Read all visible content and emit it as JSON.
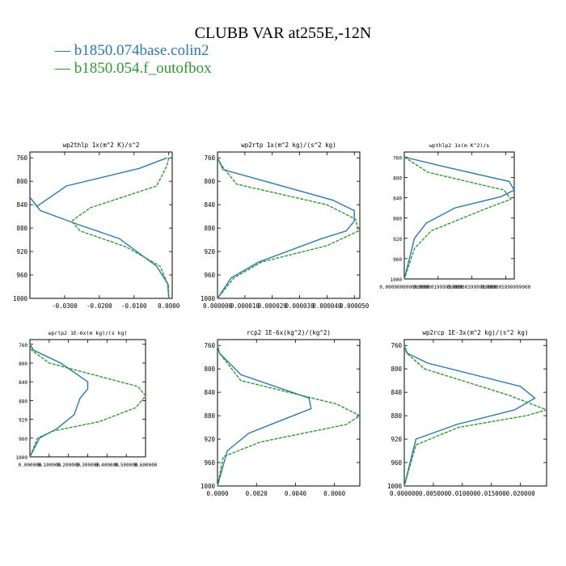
{
  "title": "CLUBB VAR at255E,-12N",
  "legend": [
    {
      "label": "b1850.074base.colin2",
      "color": "#2a78b4",
      "dash": false
    },
    {
      "label": "b1850.054.f_outofbox",
      "color": "#2f9a2f",
      "dash": true
    }
  ],
  "chart_data": [
    {
      "type": "line",
      "title": "wp2thlp   1x(m^2 K)/s^2",
      "xlim": [
        -0.04,
        0.001
      ],
      "ylim": [
        1000,
        750
      ],
      "xticks": [
        -0.03,
        -0.02,
        -0.01,
        0.0
      ],
      "xtick_labels": [
        "-0.0300",
        "-0.0200",
        "-0.0100",
        "0.0000"
      ],
      "yticks": [
        760,
        800,
        840,
        880,
        920,
        960,
        1000
      ],
      "ytick_labels": [
        "760",
        "800",
        "840",
        "880",
        "920",
        "960",
        "1000"
      ],
      "series": [
        {
          "x": [
            -0.0005,
            -0.0085,
            -0.0295,
            -0.038,
            -0.0399,
            -0.037,
            -0.0265,
            -0.0142,
            -0.0035,
            -0.0003,
            0.0
          ],
          "y": [
            760,
            778,
            808,
            843,
            828,
            850,
            873,
            898,
            945,
            975,
            1000
          ]
        },
        {
          "x": [
            0.0,
            -0.0005,
            -0.0035,
            -0.0225,
            -0.028,
            -0.0255,
            -0.0123,
            -0.0025,
            -0.0001,
            0.0
          ],
          "y": [
            760,
            773,
            808,
            845,
            868,
            885,
            912,
            945,
            978,
            1000
          ]
        }
      ]
    },
    {
      "type": "line",
      "title": "wp2rtp   1x(m^2 kg)/(s^2 kg)",
      "xlim": [
        0.0,
        5.2e-05
      ],
      "ylim": [
        1000,
        750
      ],
      "xticks": [
        0.0,
        1e-05,
        2e-05,
        3e-05,
        4e-05,
        5e-05
      ],
      "xtick_labels": [
        "0.000000",
        "0.000010",
        "0.000020",
        "0.000030",
        "0.000040",
        "0.000050"
      ],
      "yticks": [
        760,
        800,
        840,
        880,
        920,
        960,
        1000
      ],
      "ytick_labels": [
        "760",
        "800",
        "840",
        "880",
        "920",
        "960",
        "1000"
      ],
      "series": [
        {
          "x": [
            0.0,
            2e-06,
            4.2e-05,
            5e-05,
            5e-05,
            4.7e-05,
            3.8e-05,
            1.5e-05,
            5e-06,
            0.0
          ],
          "y": [
            760,
            780,
            832,
            850,
            868,
            885,
            898,
            938,
            965,
            1000
          ]
        },
        {
          "x": [
            0.0,
            1.5e-06,
            7e-06,
            4e-05,
            5.05e-05,
            5.15e-05,
            4e-05,
            1.6e-05,
            6e-06,
            0.0
          ],
          "y": [
            760,
            773,
            805,
            840,
            865,
            885,
            910,
            938,
            965,
            1000
          ]
        }
      ]
    },
    {
      "type": "line",
      "title": "wpthlp2   1x(m K^2)/s",
      "xlim": [
        0.0,
        6.5e-06
      ],
      "ylim": [
        1000,
        750
      ],
      "xticks": [
        0.0,
        2e-06,
        4e-06,
        6e-06
      ],
      "xtick_labels": [
        "0.000000000000000",
        "0.000001999999000",
        "0.000003999999000",
        "0.000005999999000"
      ],
      "yticks": [
        760,
        800,
        840,
        880,
        920,
        960,
        1000
      ],
      "ytick_labels": [
        "760",
        "800",
        "840",
        "880",
        "920",
        "960",
        "1000"
      ],
      "series": [
        {
          "x": [
            0.0,
            2.5e-06,
            6.2e-06,
            6.5e-06,
            5.7e-06,
            3e-06,
            1.3e-06,
            6e-07,
            0.0
          ],
          "y": [
            760,
            780,
            808,
            825,
            838,
            860,
            890,
            920,
            1000
          ]
        },
        {
          "x": [
            0.0,
            1.4e-06,
            5.9e-06,
            6.3e-06,
            5.1e-06,
            1.6e-06,
            6e-07,
            0.0
          ],
          "y": [
            760,
            790,
            825,
            843,
            858,
            905,
            940,
            1000
          ]
        }
      ]
    },
    {
      "type": "line",
      "title": "wprtp2   1E-6x(m kg)/(s kg)",
      "xlim": [
        0.0,
        0.6
      ],
      "ylim": [
        1000,
        750
      ],
      "xticks": [
        0.0,
        0.1,
        0.2,
        0.3,
        0.4,
        0.5,
        0.6
      ],
      "xtick_labels": [
        "0.000000",
        "0.100000",
        "0.200000",
        "0.300000",
        "0.400000",
        "0.500000",
        "0.600000"
      ],
      "yticks": [
        760,
        800,
        840,
        880,
        920,
        960,
        1000
      ],
      "ytick_labels": [
        "760",
        "800",
        "840",
        "880",
        "920",
        "960",
        "1000"
      ],
      "series": [
        {
          "x": [
            0.0,
            0.02,
            0.16,
            0.3,
            0.3,
            0.26,
            0.23,
            0.14,
            0.05,
            0.0
          ],
          "y": [
            760,
            773,
            800,
            840,
            855,
            875,
            910,
            940,
            960,
            1000
          ]
        },
        {
          "x": [
            0.0,
            0.01,
            0.1,
            0.56,
            0.6,
            0.55,
            0.36,
            0.12,
            0.04,
            0.0
          ],
          "y": [
            760,
            773,
            800,
            850,
            870,
            895,
            925,
            945,
            960,
            1000
          ]
        }
      ]
    },
    {
      "type": "line",
      "title": "rcp2   1E-6x(kg^2)/(kg^2)",
      "xlim": [
        0.0,
        0.0073
      ],
      "ylim": [
        1000,
        750
      ],
      "xticks": [
        0.0,
        0.002,
        0.004,
        0.006
      ],
      "xtick_labels": [
        "0.0000",
        "0.0020",
        "0.0040",
        "0.0060"
      ],
      "yticks": [
        760,
        800,
        840,
        880,
        920,
        960,
        1000
      ],
      "ytick_labels": [
        "760",
        "800",
        "840",
        "880",
        "920",
        "960",
        "1000"
      ],
      "series": [
        {
          "x": [
            0.0,
            0.0001,
            0.0012,
            0.0047,
            0.0048,
            0.0035,
            0.0016,
            0.0005,
            0.0
          ],
          "y": [
            760,
            773,
            810,
            850,
            868,
            885,
            910,
            940,
            1000
          ]
        },
        {
          "x": [
            0.0,
            0.0001,
            0.0012,
            0.0061,
            0.0073,
            0.0066,
            0.0022,
            0.0003,
            0.0
          ],
          "y": [
            760,
            773,
            820,
            860,
            880,
            895,
            925,
            950,
            1000
          ]
        }
      ]
    },
    {
      "type": "line",
      "title": "wp2rcp   1E-3x(m^2 kg)/(s^2 kg)",
      "xlim": [
        0.0,
        0.0245
      ],
      "ylim": [
        1000,
        750
      ],
      "xticks": [
        0.0,
        0.005,
        0.01,
        0.015,
        0.02
      ],
      "xtick_labels": [
        "0.000000",
        "0.005000",
        "0.010000",
        "0.015000",
        "0.020000"
      ],
      "yticks": [
        760,
        800,
        840,
        880,
        920,
        960,
        1000
      ],
      "ytick_labels": [
        "760",
        "800",
        "840",
        "880",
        "920",
        "960",
        "1000"
      ],
      "series": [
        {
          "x": [
            0.0,
            0.0005,
            0.004,
            0.02,
            0.0225,
            0.019,
            0.009,
            0.002,
            0.0
          ],
          "y": [
            760,
            773,
            790,
            830,
            850,
            870,
            895,
            920,
            1000
          ]
        },
        {
          "x": [
            0.0,
            0.0004,
            0.0035,
            0.018,
            0.0245,
            0.021,
            0.0093,
            0.002,
            0.0
          ],
          "y": [
            760,
            773,
            800,
            845,
            870,
            880,
            900,
            930,
            1000
          ]
        }
      ]
    }
  ]
}
